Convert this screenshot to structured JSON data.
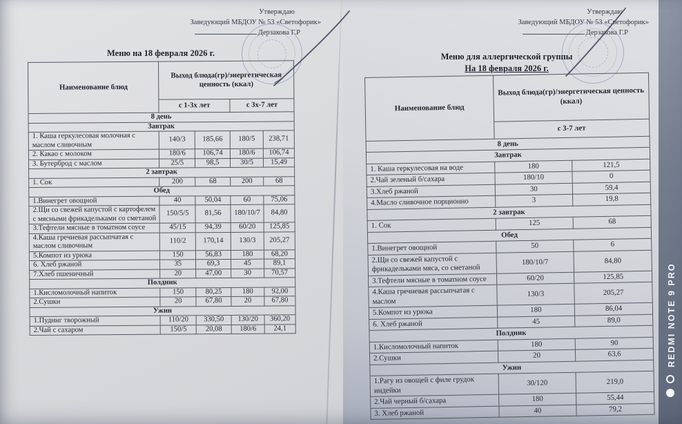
{
  "watermark": {
    "text": "REDMI NOTE 9 PRO"
  },
  "left_page": {
    "approval": {
      "line1": "Утверждаю",
      "line2": "Заведующий МБДОУ № 53 «Светофорик»",
      "line3": "Дерзакова Г.Р"
    },
    "title": "Меню на 18 февраля 2026 г.",
    "table": {
      "name_header": "Наименование блюд",
      "output_header": "Выход блюда(гр)/энергетическая ценность (ккал)",
      "age_headers": [
        "с 1-3х лет",
        "с 3х-7 лет"
      ],
      "day_label": "8  день",
      "sections": [
        {
          "label": "Завтрак",
          "rows": [
            {
              "name": "1. Каша геркулесовая молочная с маслом сливочным",
              "values": [
                "140/3",
                "185,66",
                "180/5",
                "238,71"
              ]
            },
            {
              "name": "2. Какао с молоком",
              "values": [
                "180/6",
                "106,74",
                "180/6",
                "106,74"
              ]
            },
            {
              "name": "3. Бутерброд с маслом",
              "values": [
                "25/5",
                "98,5",
                "30/5",
                "15,49"
              ]
            }
          ]
        },
        {
          "label": "2 завтрак",
          "rows": [
            {
              "name": "1. Сок",
              "values": [
                "200",
                "68",
                "200",
                "68"
              ]
            }
          ]
        },
        {
          "label": "Обед",
          "rows": [
            {
              "name": "1.Винегрет овощной",
              "values": [
                "40",
                "50,04",
                "60",
                "75,06"
              ]
            },
            {
              "name": "2.Щи со свежей капустой с картофелем с мясными фрикадельками со сметаной",
              "values": [
                "150/5/5",
                "81,56",
                "180/10/7",
                "84,80"
              ]
            },
            {
              "name": "3.Тефтели мясные в томатном соусе",
              "values": [
                "45/15",
                "94,39",
                "60/20",
                "125,85"
              ]
            },
            {
              "name": "4.Каша гречневая рассыпчатая с маслом сливочным",
              "values": [
                "110/2",
                "170,14",
                "130/3",
                "205,27"
              ]
            },
            {
              "name": "5.Компот из урюка",
              "values": [
                "150",
                "56,83",
                "180",
                "68,20"
              ]
            },
            {
              "name": "6. Хлеб ржаной",
              "values": [
                "35",
                "69,3",
                "45",
                "89,1"
              ]
            },
            {
              "name": "7.Хлеб пшеничный",
              "values": [
                "20",
                "47,00",
                "30",
                "70,57"
              ]
            }
          ]
        },
        {
          "label": "Полдник",
          "rows": [
            {
              "name": "1.Кисломолочный напиток",
              "values": [
                "150",
                "80,25",
                "180",
                "92,00"
              ]
            },
            {
              "name": "2.Сушки",
              "values": [
                "20",
                "67,80",
                "20",
                "67,80"
              ]
            }
          ]
        },
        {
          "label": "Ужин",
          "rows": [
            {
              "name": "1.Пудинг творожный",
              "values": [
                "110/20",
                "330,50",
                "130/20",
                "360,20"
              ]
            },
            {
              "name": "2.Чай с сахаром",
              "values": [
                "150/5",
                "20,08",
                "180/6",
                "24,1"
              ]
            }
          ]
        }
      ]
    }
  },
  "right_page": {
    "approval": {
      "line1": "Утверждаю",
      "line2": "Заведующий МБДОУ № 53 «Светофорик»",
      "line3": "Дерзакова Г.Р"
    },
    "title_line1": "Меню для аллергической группы",
    "title_line2": "На 18 февраля 2026 г.",
    "table": {
      "name_header": "Наименование блюд",
      "output_header": "Выход блюда(гр)/энергетическая ценность (ккал)",
      "age_headers": [
        "с 3-7 лет"
      ],
      "day_label": "8  день",
      "sections": [
        {
          "label": "Завтрак",
          "rows": [
            {
              "name": "1. Каша геркулесовая на воде",
              "values": [
                "180",
                "121,5"
              ]
            },
            {
              "name": "2.Чай зеленый б/сахара",
              "values": [
                "180/10",
                "0"
              ]
            },
            {
              "name": "3.Хлеб ржаной",
              "values": [
                "30",
                "59,4"
              ]
            },
            {
              "name": "4.Масло сливочное порционно",
              "values": [
                "3",
                "19,8"
              ]
            }
          ]
        },
        {
          "label": "2 завтрак",
          "rows": [
            {
              "name": "1. Сок",
              "values": [
                "125",
                "68"
              ]
            }
          ]
        },
        {
          "label": "Обед",
          "rows": [
            {
              "name": "1.Винегрет овощной",
              "values": [
                "50",
                "6"
              ]
            },
            {
              "name": "2.Щи со свежей капустой с фрикадельками мяса, со сметаной",
              "values": [
                "180/10/7",
                "84,80"
              ]
            },
            {
              "name": "3.Тефтели мясные в томатном соусе",
              "values": [
                "60/20",
                "125,85"
              ]
            },
            {
              "name": "4.Каша гречневая рассыпчатая с маслом",
              "values": [
                "130/3",
                "205,27"
              ]
            },
            {
              "name": "5.Компот из урюка",
              "values": [
                "180",
                "86,04"
              ]
            },
            {
              "name": "6. Хлеб ржаной",
              "values": [
                "45",
                "89,0"
              ]
            }
          ]
        },
        {
          "label": "Полдник",
          "rows": [
            {
              "name": "1.Кисломолочный напиток",
              "values": [
                "180",
                "90"
              ]
            },
            {
              "name": "2.Сушки",
              "values": [
                "20",
                "63,6"
              ]
            }
          ]
        },
        {
          "label": "Ужин",
          "rows": [
            {
              "name": "1.Рагу из овощей с филе грудок индейки",
              "values": [
                "30/120",
                "219,0"
              ]
            },
            {
              "name": "2.Чай черный б/сахара",
              "values": [
                "180",
                "55,44"
              ]
            },
            {
              "name": "3. Хлеб ржаной",
              "values": [
                "40",
                "79,2"
              ]
            }
          ]
        }
      ]
    }
  }
}
